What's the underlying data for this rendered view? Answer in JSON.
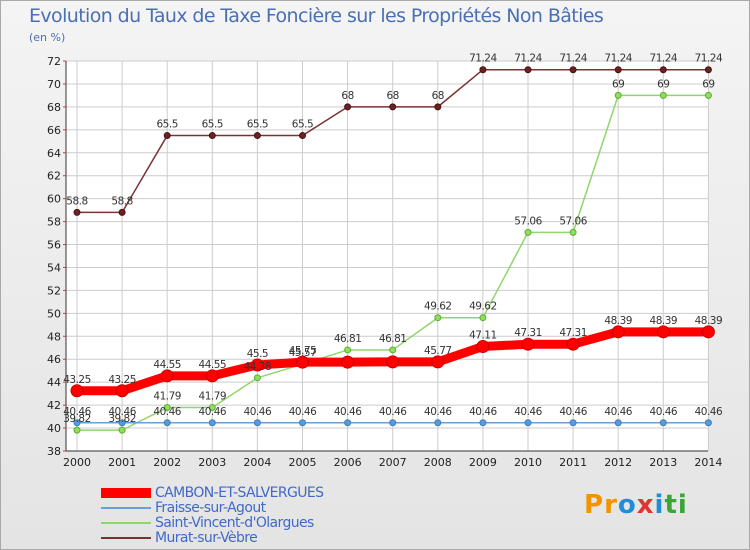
{
  "title": "Evolution du Taux de Taxe Foncière sur les Propriétés Non Bâties",
  "unit_label": "(en %)",
  "logo_text": "Proxiti",
  "colors": {
    "cambon": "#ff0000",
    "fraisse": "#6aa0d8",
    "saint_vincent": "#8fd66b",
    "murat": "#7a3333",
    "title": "#4a6fb3",
    "grid": "#cccccc"
  },
  "chart_data": {
    "type": "line",
    "title": "Evolution du Taux de Taxe Foncière sur les Propriétés Non Bâties",
    "xlabel": "",
    "ylabel": "(en %)",
    "x": [
      "2000",
      "2001",
      "2002",
      "2003",
      "2004",
      "2005",
      "2006",
      "2007",
      "2008",
      "2009",
      "2010",
      "2011",
      "2012",
      "2013",
      "2014"
    ],
    "ylim": [
      38,
      72
    ],
    "yticks": [
      38,
      40,
      42,
      44,
      46,
      48,
      50,
      52,
      54,
      56,
      58,
      60,
      62,
      64,
      66,
      68,
      70,
      72
    ],
    "series": [
      {
        "name": "CAMBON-ET-SALVERGUES",
        "key": "cambon",
        "values": [
          43.25,
          43.25,
          44.55,
          44.55,
          45.5,
          45.75,
          45.75,
          45.77,
          45.77,
          47.11,
          47.31,
          47.31,
          48.39,
          48.39,
          48.39
        ],
        "labels": [
          "43.25",
          "43.25",
          "44.55",
          "44.55",
          "45.5",
          "45.75",
          "",
          "",
          "45.77",
          "47.11",
          "47.31",
          "47.31",
          "48.39",
          "48.39",
          "48.39"
        ]
      },
      {
        "name": "Fraisse-sur-Agout",
        "key": "fraisse",
        "values": [
          40.46,
          40.46,
          40.46,
          40.46,
          40.46,
          40.46,
          40.46,
          40.46,
          40.46,
          40.46,
          40.46,
          40.46,
          40.46,
          40.46,
          40.46
        ],
        "labels": [
          "40.46",
          "40.46",
          "40.46",
          "40.46",
          "40.46",
          "40.46",
          "40.46",
          "40.46",
          "40.46",
          "40.46",
          "40.46",
          "40.46",
          "40.46",
          "40.46",
          "40.46"
        ]
      },
      {
        "name": "Saint-Vincent-d'Olargues",
        "key": "saint_vincent",
        "values": [
          39.82,
          39.82,
          41.79,
          41.79,
          44.38,
          45.57,
          46.81,
          46.81,
          49.62,
          49.62,
          57.06,
          57.06,
          69,
          69,
          69
        ],
        "labels": [
          "39.82",
          "39.82",
          "41.79",
          "41.79",
          "44.38",
          "45.57",
          "46.81",
          "46.81",
          "49.62",
          "49.62",
          "57.06",
          "57.06",
          "69",
          "69",
          "69"
        ]
      },
      {
        "name": "Murat-sur-Vèbre",
        "key": "murat",
        "values": [
          58.8,
          58.8,
          65.5,
          65.5,
          65.5,
          65.5,
          68,
          68,
          68,
          71.24,
          71.24,
          71.24,
          71.24,
          71.24,
          71.24
        ],
        "labels": [
          "58.8",
          "58.8",
          "65.5",
          "65.5",
          "65.5",
          "65.5",
          "68",
          "68",
          "68",
          "71.24",
          "71.24",
          "71.24",
          "71.24",
          "71.24",
          "71.24"
        ]
      }
    ],
    "legend_position": "bottom-left",
    "grid": true
  }
}
